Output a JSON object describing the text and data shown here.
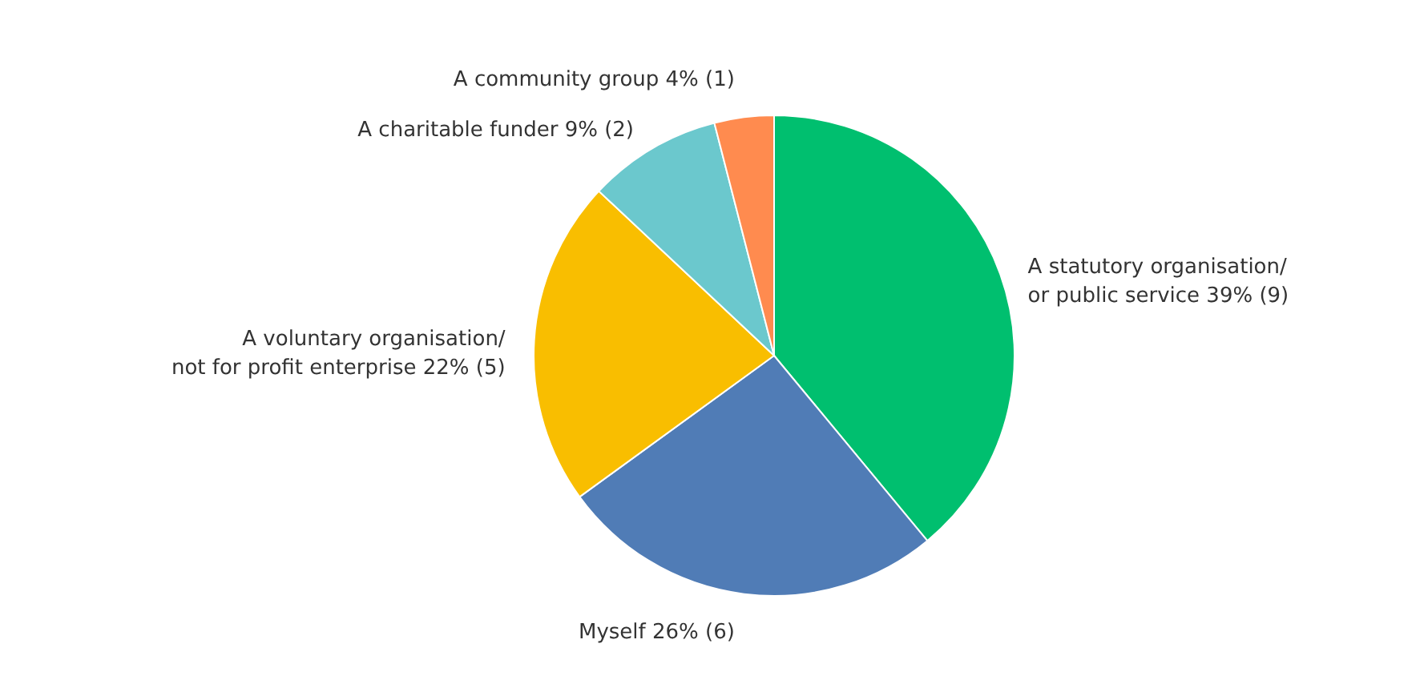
{
  "chart_data": {
    "type": "pie",
    "categories": [
      "A statutory organisation/\nor public service",
      "Myself",
      "A voluntary organisation/\nnot for profit enterprise",
      "A charitable funder",
      "A community group"
    ],
    "values": [
      39,
      26,
      22,
      9,
      4
    ],
    "value_labels": [
      "39% (9)",
      "26% (6)",
      "22% (5)",
      "9% (2)",
      "4% (1)"
    ],
    "colors": [
      "#00bf6f",
      "#507cb6",
      "#f9be00",
      "#6bc8cd",
      "#ff8b4f"
    ]
  }
}
